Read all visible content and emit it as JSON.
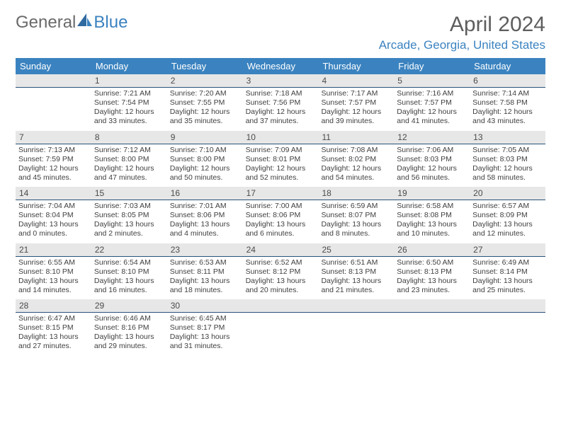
{
  "brand": {
    "part1": "General",
    "part2": "Blue"
  },
  "title": "April 2024",
  "location": "Arcade, Georgia, United States",
  "colors": {
    "header_bg": "#3b83c0",
    "header_text": "#ffffff",
    "daynum_bg": "#e7e7e7",
    "daynum_border": "#29527a",
    "body_text": "#404040",
    "title_text": "#5e5e5e",
    "location_text": "#3b83c0",
    "logo_gray": "#6a6a6a"
  },
  "day_headers": [
    "Sunday",
    "Monday",
    "Tuesday",
    "Wednesday",
    "Thursday",
    "Friday",
    "Saturday"
  ],
  "weeks": [
    [
      null,
      {
        "n": "1",
        "sr": "Sunrise: 7:21 AM",
        "ss": "Sunset: 7:54 PM",
        "d1": "Daylight: 12 hours",
        "d2": "and 33 minutes."
      },
      {
        "n": "2",
        "sr": "Sunrise: 7:20 AM",
        "ss": "Sunset: 7:55 PM",
        "d1": "Daylight: 12 hours",
        "d2": "and 35 minutes."
      },
      {
        "n": "3",
        "sr": "Sunrise: 7:18 AM",
        "ss": "Sunset: 7:56 PM",
        "d1": "Daylight: 12 hours",
        "d2": "and 37 minutes."
      },
      {
        "n": "4",
        "sr": "Sunrise: 7:17 AM",
        "ss": "Sunset: 7:57 PM",
        "d1": "Daylight: 12 hours",
        "d2": "and 39 minutes."
      },
      {
        "n": "5",
        "sr": "Sunrise: 7:16 AM",
        "ss": "Sunset: 7:57 PM",
        "d1": "Daylight: 12 hours",
        "d2": "and 41 minutes."
      },
      {
        "n": "6",
        "sr": "Sunrise: 7:14 AM",
        "ss": "Sunset: 7:58 PM",
        "d1": "Daylight: 12 hours",
        "d2": "and 43 minutes."
      }
    ],
    [
      {
        "n": "7",
        "sr": "Sunrise: 7:13 AM",
        "ss": "Sunset: 7:59 PM",
        "d1": "Daylight: 12 hours",
        "d2": "and 45 minutes."
      },
      {
        "n": "8",
        "sr": "Sunrise: 7:12 AM",
        "ss": "Sunset: 8:00 PM",
        "d1": "Daylight: 12 hours",
        "d2": "and 47 minutes."
      },
      {
        "n": "9",
        "sr": "Sunrise: 7:10 AM",
        "ss": "Sunset: 8:00 PM",
        "d1": "Daylight: 12 hours",
        "d2": "and 50 minutes."
      },
      {
        "n": "10",
        "sr": "Sunrise: 7:09 AM",
        "ss": "Sunset: 8:01 PM",
        "d1": "Daylight: 12 hours",
        "d2": "and 52 minutes."
      },
      {
        "n": "11",
        "sr": "Sunrise: 7:08 AM",
        "ss": "Sunset: 8:02 PM",
        "d1": "Daylight: 12 hours",
        "d2": "and 54 minutes."
      },
      {
        "n": "12",
        "sr": "Sunrise: 7:06 AM",
        "ss": "Sunset: 8:03 PM",
        "d1": "Daylight: 12 hours",
        "d2": "and 56 minutes."
      },
      {
        "n": "13",
        "sr": "Sunrise: 7:05 AM",
        "ss": "Sunset: 8:03 PM",
        "d1": "Daylight: 12 hours",
        "d2": "and 58 minutes."
      }
    ],
    [
      {
        "n": "14",
        "sr": "Sunrise: 7:04 AM",
        "ss": "Sunset: 8:04 PM",
        "d1": "Daylight: 13 hours",
        "d2": "and 0 minutes."
      },
      {
        "n": "15",
        "sr": "Sunrise: 7:03 AM",
        "ss": "Sunset: 8:05 PM",
        "d1": "Daylight: 13 hours",
        "d2": "and 2 minutes."
      },
      {
        "n": "16",
        "sr": "Sunrise: 7:01 AM",
        "ss": "Sunset: 8:06 PM",
        "d1": "Daylight: 13 hours",
        "d2": "and 4 minutes."
      },
      {
        "n": "17",
        "sr": "Sunrise: 7:00 AM",
        "ss": "Sunset: 8:06 PM",
        "d1": "Daylight: 13 hours",
        "d2": "and 6 minutes."
      },
      {
        "n": "18",
        "sr": "Sunrise: 6:59 AM",
        "ss": "Sunset: 8:07 PM",
        "d1": "Daylight: 13 hours",
        "d2": "and 8 minutes."
      },
      {
        "n": "19",
        "sr": "Sunrise: 6:58 AM",
        "ss": "Sunset: 8:08 PM",
        "d1": "Daylight: 13 hours",
        "d2": "and 10 minutes."
      },
      {
        "n": "20",
        "sr": "Sunrise: 6:57 AM",
        "ss": "Sunset: 8:09 PM",
        "d1": "Daylight: 13 hours",
        "d2": "and 12 minutes."
      }
    ],
    [
      {
        "n": "21",
        "sr": "Sunrise: 6:55 AM",
        "ss": "Sunset: 8:10 PM",
        "d1": "Daylight: 13 hours",
        "d2": "and 14 minutes."
      },
      {
        "n": "22",
        "sr": "Sunrise: 6:54 AM",
        "ss": "Sunset: 8:10 PM",
        "d1": "Daylight: 13 hours",
        "d2": "and 16 minutes."
      },
      {
        "n": "23",
        "sr": "Sunrise: 6:53 AM",
        "ss": "Sunset: 8:11 PM",
        "d1": "Daylight: 13 hours",
        "d2": "and 18 minutes."
      },
      {
        "n": "24",
        "sr": "Sunrise: 6:52 AM",
        "ss": "Sunset: 8:12 PM",
        "d1": "Daylight: 13 hours",
        "d2": "and 20 minutes."
      },
      {
        "n": "25",
        "sr": "Sunrise: 6:51 AM",
        "ss": "Sunset: 8:13 PM",
        "d1": "Daylight: 13 hours",
        "d2": "and 21 minutes."
      },
      {
        "n": "26",
        "sr": "Sunrise: 6:50 AM",
        "ss": "Sunset: 8:13 PM",
        "d1": "Daylight: 13 hours",
        "d2": "and 23 minutes."
      },
      {
        "n": "27",
        "sr": "Sunrise: 6:49 AM",
        "ss": "Sunset: 8:14 PM",
        "d1": "Daylight: 13 hours",
        "d2": "and 25 minutes."
      }
    ],
    [
      {
        "n": "28",
        "sr": "Sunrise: 6:47 AM",
        "ss": "Sunset: 8:15 PM",
        "d1": "Daylight: 13 hours",
        "d2": "and 27 minutes."
      },
      {
        "n": "29",
        "sr": "Sunrise: 6:46 AM",
        "ss": "Sunset: 8:16 PM",
        "d1": "Daylight: 13 hours",
        "d2": "and 29 minutes."
      },
      {
        "n": "30",
        "sr": "Sunrise: 6:45 AM",
        "ss": "Sunset: 8:17 PM",
        "d1": "Daylight: 13 hours",
        "d2": "and 31 minutes."
      },
      null,
      null,
      null,
      null
    ]
  ]
}
